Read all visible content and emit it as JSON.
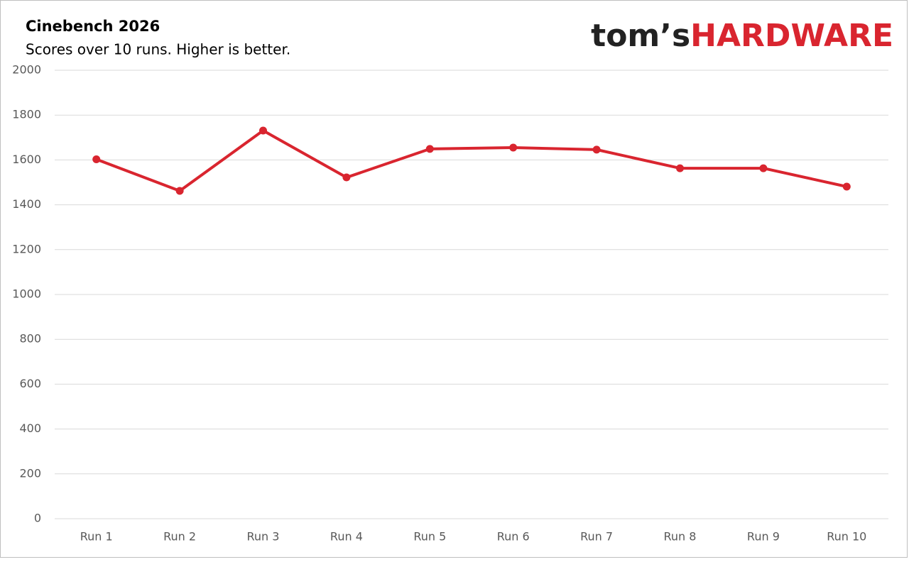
{
  "chart_data": {
    "type": "line",
    "title": "Cinebench 2026",
    "subtitle": "Scores over 10 runs. Higher is better.",
    "logo": {
      "brand": "tom’s",
      "name": "HARDWARE"
    },
    "categories": [
      "Run 1",
      "Run 2",
      "Run 3",
      "Run 4",
      "Run 5",
      "Run 6",
      "Run 7",
      "Run 8",
      "Run 9",
      "Run 10"
    ],
    "values": [
      1603,
      1462,
      1731,
      1522,
      1649,
      1655,
      1646,
      1563,
      1563,
      1481
    ],
    "color": "#d9252f",
    "ylim": [
      0,
      2000
    ],
    "yticks": [
      0,
      200,
      400,
      600,
      800,
      1000,
      1200,
      1400,
      1600,
      1800,
      2000
    ],
    "grid": true
  }
}
